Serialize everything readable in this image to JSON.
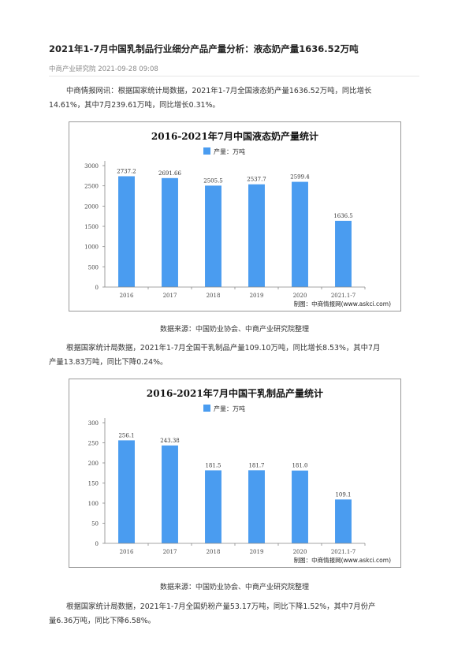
{
  "article": {
    "title": "2021年1-7月中国乳制品行业细分产品产量分析：液态奶产量1636.52万吨",
    "meta": "中商产业研究院 2021-09-28 09:08",
    "para1_line1": "中商情报网讯：根据国家统计局数据，2021年1-7月全国液态奶产量1636.52万吨，同比增长",
    "para1_line2": "14.61%，其中7月239.61万吨，同比增长0.31%。",
    "para2_line1": "根据国家统计局数据，2021年1-7月全国干乳制品产量109.10万吨，同比增长8.53%，其中7月",
    "para2_line2": "产量13.83万吨，同比下降0.24%。",
    "para3_line1": "根据国家统计局数据，2021年1-7月全国奶粉产量53.17万吨，同比下降1.52%，其中7月份产",
    "para3_line2": "量6.36万吨，同比下降6.58%。",
    "source1": "数据来源：中国奶业协会、中商产业研究院整理",
    "source2": "数据来源：中国奶业协会、中商产业研究院整理"
  },
  "colors": {
    "bar": "#4a9cf0",
    "title_text": "#111111",
    "axis_text": "#444444"
  },
  "chart_data": [
    {
      "type": "bar",
      "title": "2016-2021年7月中国液态奶产量统计",
      "legend": "产量：万吨",
      "categories": [
        "2016",
        "2017",
        "2018",
        "2019",
        "2020",
        "2021.1-7"
      ],
      "values": [
        2737.2,
        2691.66,
        2505.5,
        2537.7,
        2599.4,
        1636.5
      ],
      "value_labels": [
        "2737.2",
        "2691.66",
        "2505.5",
        "2537.7",
        "2599.4",
        "1636.5"
      ],
      "yticks": [
        "0",
        "500",
        "1000",
        "1500",
        "2000",
        "2500",
        "3000"
      ],
      "ylim": [
        0,
        3000
      ],
      "credit": "制图：中商情报网(www.askci.com)"
    },
    {
      "type": "bar",
      "title": "2016-2021年7月中国干乳制品产量统计",
      "legend": "产量：万吨",
      "categories": [
        "2016",
        "2017",
        "2018",
        "2019",
        "2020",
        "2021.1-7"
      ],
      "values": [
        256.1,
        243.38,
        181.5,
        181.7,
        181.0,
        109.1
      ],
      "value_labels": [
        "256.1",
        "243.38",
        "181.5",
        "181.7",
        "181.0",
        "109.1"
      ],
      "yticks": [
        "0",
        "50",
        "100",
        "150",
        "200",
        "250",
        "300"
      ],
      "ylim": [
        0,
        300
      ],
      "credit": "制图：中商情报网(www.askci.com)"
    }
  ]
}
